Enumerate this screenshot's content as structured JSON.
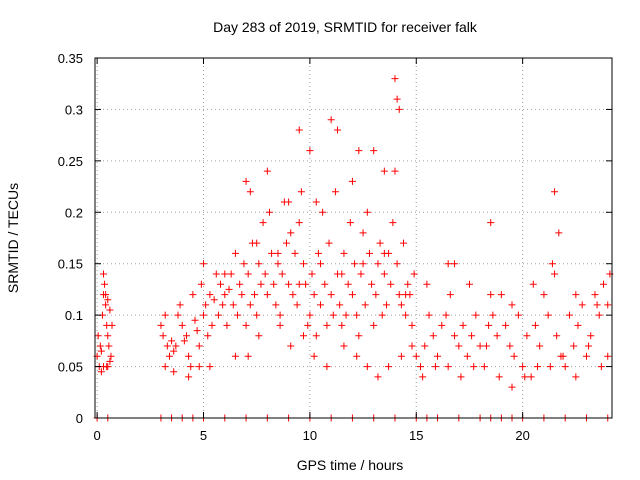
{
  "chart_data": {
    "type": "scatter",
    "title": "Day 283 of 2019, SRMTID for receiver falk",
    "xlabel": "GPS time / hours",
    "ylabel": "SRMTID / TECUs",
    "xlim": [
      -0.1,
      24.2
    ],
    "ylim": [
      0,
      0.35
    ],
    "xticks": [
      0,
      5,
      10,
      15,
      20
    ],
    "xtick_labels": [
      "0",
      "5",
      "10",
      "15",
      "20"
    ],
    "yticks": [
      0,
      0.05,
      0.1,
      0.15,
      0.2,
      0.25,
      0.3,
      0.35
    ],
    "ytick_labels": [
      "0",
      "0.05",
      "0.1",
      "0.15",
      "0.2",
      "0.25",
      "0.3",
      "0.35"
    ],
    "grid": true,
    "marker": "+",
    "color": "#ff0000",
    "series": [
      {
        "name": "SRMTID",
        "x": [
          0.0,
          0.05,
          0.1,
          0.15,
          0.2,
          0.25,
          0.3,
          0.35,
          0.4,
          0.45,
          0.5,
          0.55,
          0.6,
          0.65,
          0.7,
          0.3,
          0.4,
          0.5,
          0.6,
          0.45,
          3.0,
          3.1,
          3.2,
          3.3,
          3.4,
          3.5,
          3.6,
          3.7,
          3.8,
          3.9,
          4.0,
          4.1,
          4.2,
          4.3,
          4.4,
          4.5,
          4.6,
          4.7,
          4.8,
          4.9,
          5.0,
          5.1,
          5.2,
          5.3,
          5.4,
          5.5,
          5.6,
          5.7,
          5.8,
          5.9,
          6.0,
          6.1,
          6.2,
          6.3,
          6.4,
          6.5,
          6.6,
          6.7,
          6.8,
          6.9,
          7.0,
          7.1,
          7.2,
          7.3,
          7.4,
          7.5,
          7.6,
          7.7,
          7.8,
          7.9,
          8.0,
          8.1,
          8.2,
          8.3,
          8.4,
          8.5,
          8.6,
          8.7,
          8.8,
          8.9,
          9.0,
          9.1,
          9.2,
          9.3,
          9.4,
          9.5,
          9.6,
          9.7,
          9.8,
          9.9,
          10.0,
          10.1,
          10.2,
          10.3,
          10.4,
          10.5,
          10.6,
          10.7,
          10.8,
          10.9,
          11.0,
          11.1,
          11.2,
          11.3,
          11.4,
          11.5,
          11.6,
          11.7,
          11.8,
          11.9,
          12.0,
          12.1,
          12.2,
          12.3,
          12.4,
          12.5,
          12.6,
          12.7,
          12.8,
          12.9,
          13.0,
          13.1,
          13.2,
          13.3,
          13.4,
          13.5,
          13.6,
          13.7,
          13.8,
          13.9,
          14.0,
          14.1,
          14.2,
          14.3,
          14.4,
          14.5,
          14.6,
          14.7,
          14.8,
          14.9,
          15.0,
          15.2,
          15.4,
          15.6,
          15.8,
          16.0,
          16.2,
          16.4,
          16.6,
          16.8,
          17.0,
          17.2,
          17.4,
          17.6,
          17.8,
          18.0,
          18.2,
          18.4,
          18.6,
          18.8,
          19.0,
          19.2,
          19.4,
          19.6,
          19.8,
          20.0,
          20.2,
          20.4,
          20.6,
          20.8,
          21.0,
          21.2,
          21.4,
          21.6,
          21.8,
          22.0,
          22.2,
          22.4,
          22.6,
          22.8,
          23.0,
          23.2,
          23.4,
          23.6,
          23.8,
          24.0,
          24.1,
          9.5,
          10.0,
          11.0,
          11.3,
          12.0,
          12.3,
          13.0,
          13.5,
          14.0,
          14.1,
          14.2,
          8.0,
          7.0,
          7.2,
          9.0,
          10.3,
          21.5,
          21.7,
          18.5,
          16.8,
          0.2,
          0.3,
          0.5,
          3.2,
          3.6,
          4.3,
          4.8,
          5.3,
          6.5,
          7.1,
          7.6,
          8.6,
          9.1,
          9.7,
          10.2,
          10.8,
          11.6,
          12.2,
          12.7,
          13.2,
          13.7,
          14.3,
          14.8,
          15.3,
          15.9,
          16.5,
          17.1,
          17.7,
          18.3,
          18.9,
          19.5,
          20.1,
          20.7,
          21.3,
          21.9,
          22.5,
          23.1,
          23.7,
          24.0,
          5.0,
          6.0,
          7.5,
          8.5,
          9.5,
          10.5,
          11.5,
          12.5,
          13.5,
          14.5,
          15.5,
          16.5,
          17.5,
          18.5,
          19.5,
          20.5,
          21.5,
          22.5,
          23.5,
          0.0,
          0.5,
          3.0,
          3.5,
          4.0,
          4.5,
          5.0,
          6.0,
          7.0,
          8.0,
          9.0,
          10.0,
          11.0,
          12.0,
          13.0,
          14.0,
          15.0,
          15.5,
          16.0,
          17.0,
          18.0,
          18.5,
          19.0,
          19.5,
          20.0,
          21.0,
          22.0,
          23.0,
          24.0
        ],
        "y": [
          0.06,
          0.08,
          0.05,
          0.07,
          0.065,
          0.1,
          0.12,
          0.13,
          0.11,
          0.09,
          0.08,
          0.07,
          0.055,
          0.06,
          0.09,
          0.14,
          0.12,
          0.115,
          0.105,
          0.05,
          0.09,
          0.08,
          0.1,
          0.07,
          0.06,
          0.075,
          0.065,
          0.07,
          0.1,
          0.11,
          0.09,
          0.075,
          0.08,
          0.06,
          0.05,
          0.12,
          0.095,
          0.085,
          0.07,
          0.13,
          0.1,
          0.11,
          0.08,
          0.12,
          0.09,
          0.115,
          0.14,
          0.1,
          0.13,
          0.11,
          0.12,
          0.09,
          0.125,
          0.14,
          0.11,
          0.16,
          0.1,
          0.13,
          0.12,
          0.15,
          0.09,
          0.14,
          0.11,
          0.17,
          0.12,
          0.1,
          0.15,
          0.13,
          0.19,
          0.14,
          0.12,
          0.2,
          0.16,
          0.13,
          0.11,
          0.15,
          0.1,
          0.14,
          0.21,
          0.17,
          0.13,
          0.18,
          0.12,
          0.16,
          0.11,
          0.19,
          0.22,
          0.15,
          0.13,
          0.09,
          0.1,
          0.14,
          0.12,
          0.08,
          0.16,
          0.11,
          0.2,
          0.13,
          0.09,
          0.17,
          0.12,
          0.1,
          0.22,
          0.14,
          0.11,
          0.09,
          0.16,
          0.1,
          0.13,
          0.19,
          0.12,
          0.15,
          0.1,
          0.08,
          0.14,
          0.18,
          0.11,
          0.2,
          0.16,
          0.13,
          0.09,
          0.12,
          0.15,
          0.17,
          0.1,
          0.14,
          0.11,
          0.16,
          0.13,
          0.19,
          0.24,
          0.15,
          0.12,
          0.11,
          0.17,
          0.1,
          0.13,
          0.12,
          0.09,
          0.14,
          0.06,
          0.05,
          0.07,
          0.1,
          0.08,
          0.06,
          0.09,
          0.1,
          0.12,
          0.08,
          0.07,
          0.09,
          0.06,
          0.08,
          0.1,
          0.07,
          0.05,
          0.09,
          0.1,
          0.08,
          0.12,
          0.09,
          0.07,
          0.06,
          0.1,
          0.05,
          0.08,
          0.04,
          0.09,
          0.07,
          0.12,
          0.1,
          0.15,
          0.08,
          0.06,
          0.05,
          0.1,
          0.07,
          0.09,
          0.11,
          0.06,
          0.08,
          0.12,
          0.1,
          0.13,
          0.11,
          0.14,
          0.28,
          0.26,
          0.29,
          0.28,
          0.23,
          0.26,
          0.26,
          0.24,
          0.33,
          0.31,
          0.3,
          0.24,
          0.23,
          0.22,
          0.21,
          0.21,
          0.22,
          0.18,
          0.19,
          0.15,
          0.045,
          0.05,
          0.05,
          0.05,
          0.045,
          0.04,
          0.05,
          0.05,
          0.06,
          0.06,
          0.08,
          0.09,
          0.07,
          0.08,
          0.06,
          0.05,
          0.07,
          0.06,
          0.05,
          0.04,
          0.05,
          0.06,
          0.07,
          0.04,
          0.05,
          0.05,
          0.04,
          0.05,
          0.07,
          0.04,
          0.03,
          0.04,
          0.05,
          0.05,
          0.06,
          0.04,
          0.07,
          0.05,
          0.06,
          0.15,
          0.14,
          0.17,
          0.16,
          0.13,
          0.15,
          0.14,
          0.15,
          0.16,
          0.12,
          0.13,
          0.15,
          0.13,
          0.12,
          0.11,
          0.13,
          0.14,
          0.12,
          0.11,
          0,
          0,
          0,
          0,
          0,
          0,
          0,
          0,
          0,
          0,
          0,
          0,
          0,
          0,
          0,
          0,
          0,
          0,
          0,
          0,
          0,
          0,
          0,
          0,
          0,
          0,
          0,
          0,
          0
        ]
      }
    ]
  }
}
